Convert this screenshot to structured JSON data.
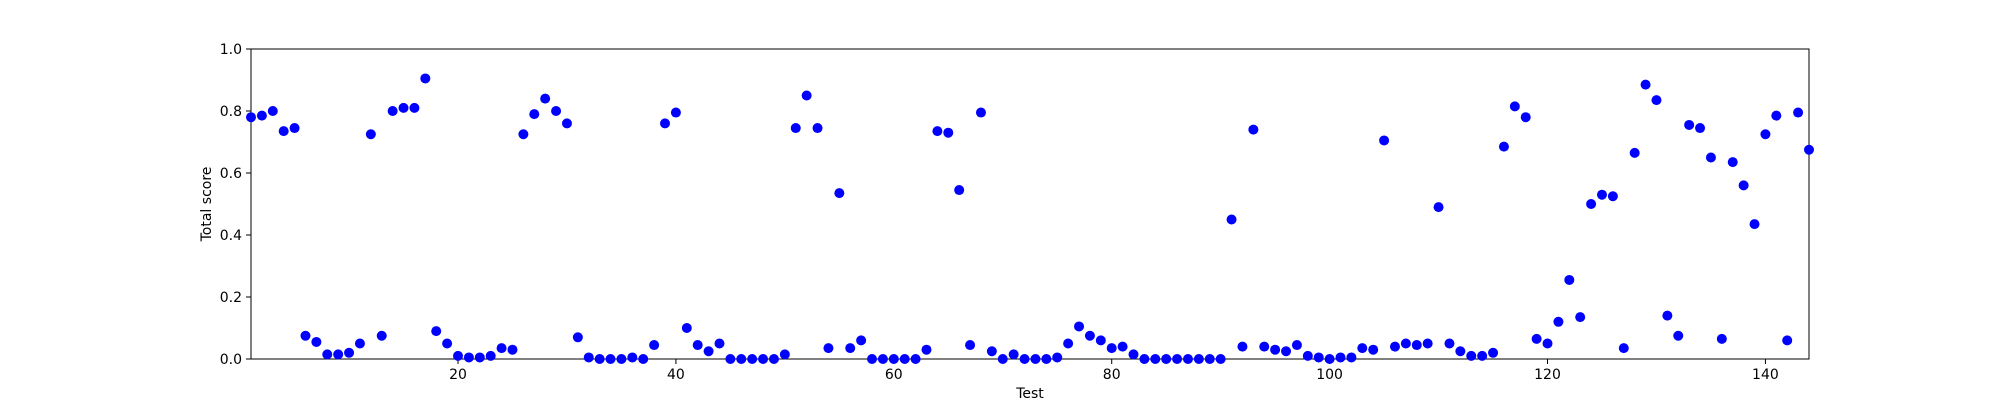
{
  "chart_data": {
    "type": "scatter",
    "xlabel": "Test",
    "ylabel": "Total score",
    "xlim": [
      1,
      144
    ],
    "ylim": [
      0.0,
      1.0
    ],
    "x_ticks": [
      20,
      40,
      60,
      80,
      100,
      120,
      140
    ],
    "y_ticks": [
      0.0,
      0.2,
      0.4,
      0.6,
      0.8,
      1.0
    ],
    "x_tick_labels": [
      "20",
      "40",
      "60",
      "80",
      "100",
      "120",
      "140"
    ],
    "y_tick_labels": [
      "0.0",
      "0.2",
      "0.4",
      "0.6",
      "0.8",
      "1.0"
    ],
    "grid": false,
    "marker_color": "#0000ff",
    "x": [
      1,
      2,
      3,
      4,
      5,
      6,
      7,
      8,
      9,
      10,
      11,
      12,
      13,
      14,
      15,
      16,
      17,
      18,
      19,
      20,
      21,
      22,
      23,
      24,
      25,
      26,
      27,
      28,
      29,
      30,
      31,
      32,
      33,
      34,
      35,
      36,
      37,
      38,
      39,
      40,
      41,
      42,
      43,
      44,
      45,
      46,
      47,
      48,
      49,
      50,
      51,
      52,
      53,
      54,
      55,
      56,
      57,
      58,
      59,
      60,
      61,
      62,
      63,
      64,
      65,
      66,
      67,
      68,
      69,
      70,
      71,
      72,
      73,
      74,
      75,
      76,
      77,
      78,
      79,
      80,
      81,
      82,
      83,
      84,
      85,
      86,
      87,
      88,
      89,
      90,
      91,
      92,
      93,
      94,
      95,
      96,
      97,
      98,
      99,
      100,
      101,
      102,
      103,
      104,
      105,
      106,
      107,
      108,
      109,
      110,
      111,
      112,
      113,
      114,
      115,
      116,
      117,
      118,
      119,
      120,
      121,
      122,
      123,
      124,
      125,
      126,
      127,
      128,
      129,
      130,
      131,
      132,
      133,
      134,
      135,
      136,
      137,
      138,
      139,
      140,
      141,
      142,
      143,
      144
    ],
    "y": [
      0.78,
      0.785,
      0.8,
      0.735,
      0.745,
      0.075,
      0.055,
      0.015,
      0.015,
      0.02,
      0.05,
      0.725,
      0.075,
      0.8,
      0.81,
      0.81,
      0.905,
      0.09,
      0.05,
      0.01,
      0.005,
      0.005,
      0.01,
      0.035,
      0.03,
      0.725,
      0.79,
      0.84,
      0.8,
      0.76,
      0.07,
      0.005,
      0.0,
      0.0,
      0.0,
      0.005,
      0.0,
      0.045,
      0.76,
      0.795,
      0.1,
      0.045,
      0.025,
      0.05,
      0.0,
      0.0,
      0.0,
      0.0,
      0.0,
      0.015,
      0.745,
      0.85,
      0.745,
      0.035,
      0.535,
      0.035,
      0.06,
      0.0,
      0.0,
      0.0,
      0.0,
      0.0,
      0.03,
      0.735,
      0.73,
      0.545,
      0.045,
      0.795,
      0.025,
      0.0,
      0.015,
      0.0,
      0.0,
      0.0,
      0.005,
      0.05,
      0.105,
      0.075,
      0.06,
      0.035,
      0.04,
      0.015,
      0.0,
      0.0,
      0.0,
      0.0,
      0.0,
      0.0,
      0.0,
      0.0,
      0.45,
      0.04,
      0.74,
      0.04,
      0.03,
      0.025,
      0.045,
      0.01,
      0.005,
      0.0,
      0.005,
      0.005,
      0.035,
      0.03,
      0.705,
      0.04,
      0.05,
      0.045,
      0.05,
      0.49,
      0.05,
      0.025,
      0.01,
      0.01,
      0.02,
      0.685,
      0.815,
      0.78,
      0.065,
      0.05,
      0.12,
      0.255,
      0.135,
      0.5,
      0.53,
      0.525,
      0.035,
      0.665,
      0.885,
      0.835,
      0.14,
      0.075,
      0.755,
      0.745,
      0.65,
      0.065,
      0.635,
      0.56,
      0.435,
      0.725,
      0.785,
      0.06,
      0.795,
      0.675
    ]
  }
}
